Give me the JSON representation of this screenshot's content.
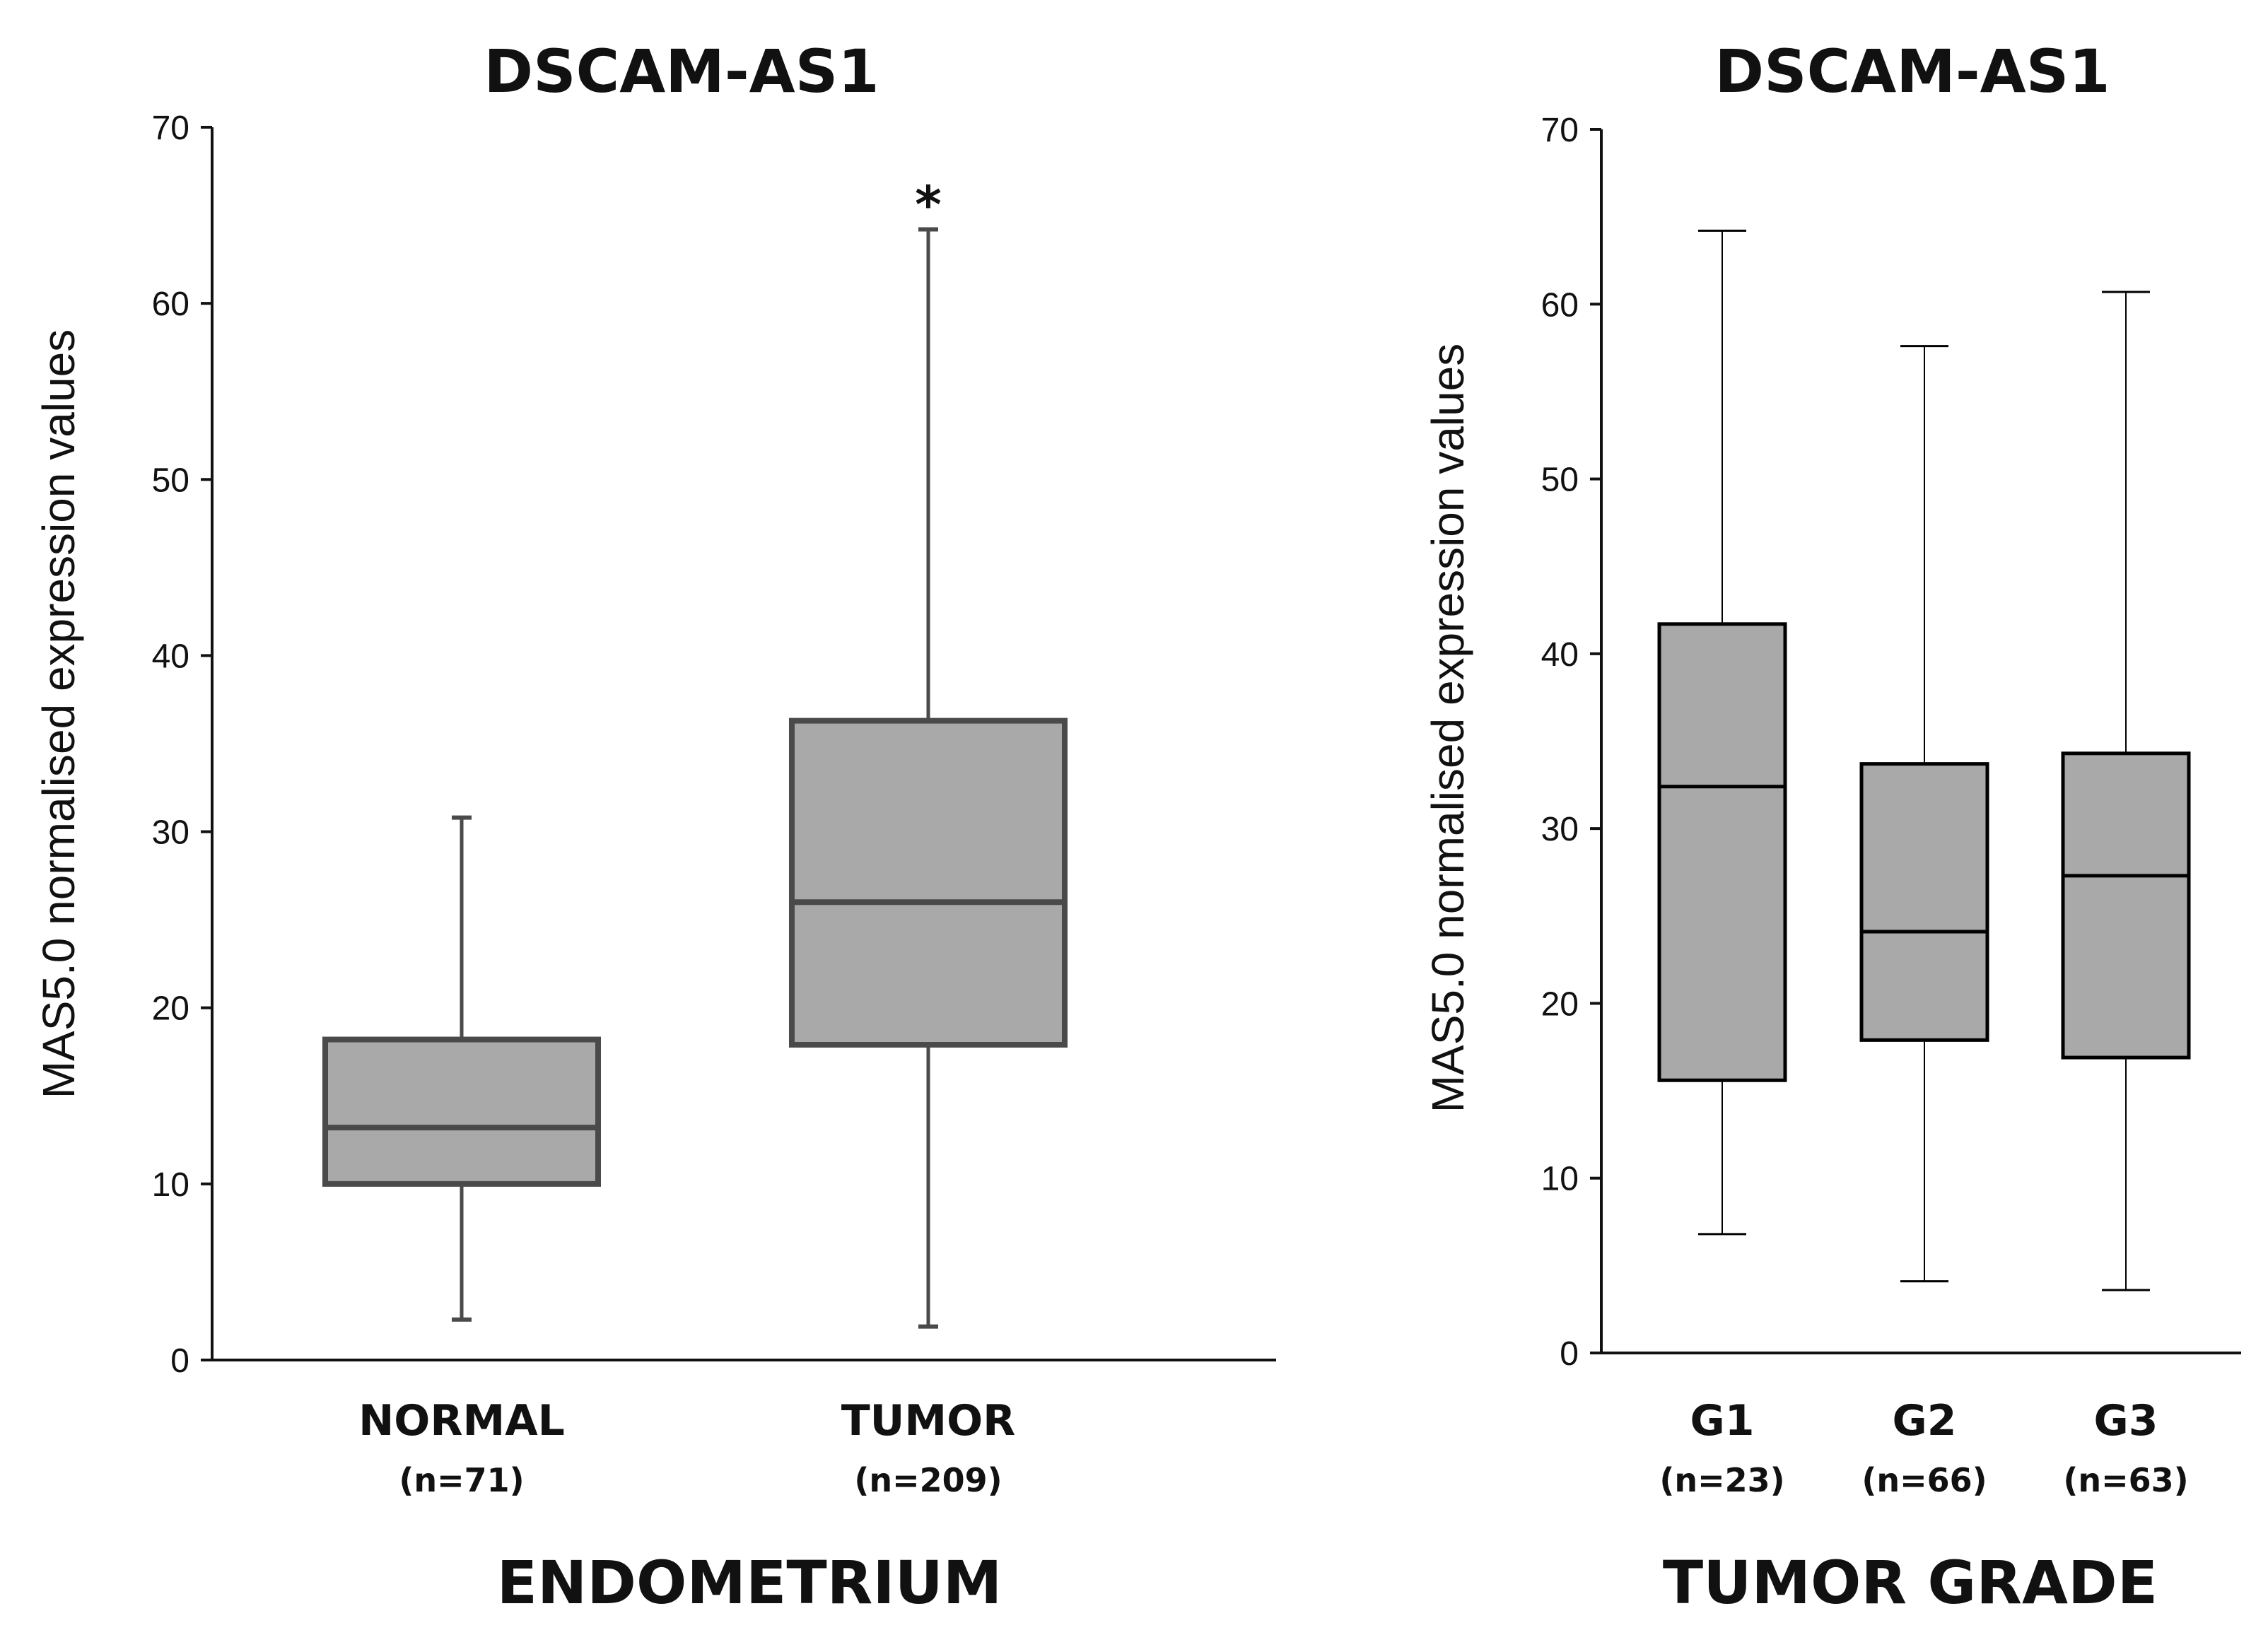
{
  "chart_data": [
    {
      "type": "boxplot",
      "title": "DSCAM-AS1",
      "ylabel": "MAS5.0 normalised expression values",
      "xlabel": "ENDOMETRIUM",
      "ylim": [
        0,
        70
      ],
      "yticks": [
        0,
        10,
        20,
        30,
        40,
        50,
        60,
        70
      ],
      "box_color": "#a9a9a9",
      "line_color": "#4a4a4a",
      "categories": [
        {
          "label": "NORMAL",
          "n": "(n=71)",
          "min": 2.3,
          "q1": 10.0,
          "median": 13.2,
          "q3": 18.2,
          "max": 30.8,
          "annotation": ""
        },
        {
          "label": "TUMOR",
          "n": "(n=209)",
          "min": 1.9,
          "q1": 17.9,
          "median": 26.0,
          "q3": 36.3,
          "max": 64.2,
          "annotation": "*"
        }
      ]
    },
    {
      "type": "boxplot",
      "title": "DSCAM-AS1",
      "ylabel": "MAS5.0 normalised expression values",
      "xlabel": "TUMOR GRADE",
      "ylim": [
        0,
        70
      ],
      "yticks": [
        0,
        10,
        20,
        30,
        40,
        50,
        60,
        70
      ],
      "box_color": "#a9a9a9",
      "line_color": "#000000",
      "categories": [
        {
          "label": "G1",
          "n": "(n=23)",
          "min": 6.8,
          "q1": 15.6,
          "median": 32.4,
          "q3": 41.7,
          "max": 64.2,
          "annotation": ""
        },
        {
          "label": "G2",
          "n": "(n=66)",
          "min": 4.1,
          "q1": 17.9,
          "median": 24.1,
          "q3": 33.7,
          "max": 57.6,
          "annotation": ""
        },
        {
          "label": "G3",
          "n": "(n=63)",
          "min": 3.6,
          "q1": 16.9,
          "median": 27.3,
          "q3": 34.3,
          "max": 60.7,
          "annotation": ""
        }
      ]
    }
  ]
}
